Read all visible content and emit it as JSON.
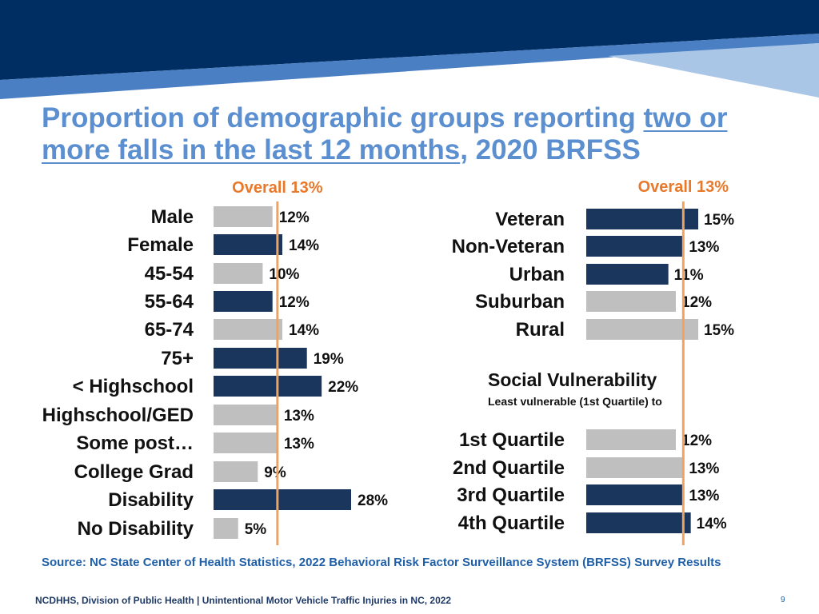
{
  "title": {
    "part1": "Proportion of demographic groups reporting ",
    "underlined1": "two or",
    "underlined2": "more falls in the last 12 months",
    "part2": ", 2020 BRFSS"
  },
  "colors": {
    "navy": "#1b365d",
    "gray": "#bfbfbf",
    "orange": "#f0a35e",
    "overall_label": "#e8792b",
    "banner_dark": "#002d62",
    "banner_mid": "#3d6fb8",
    "banner_light": "#a9c6e6"
  },
  "chart_data": [
    {
      "type": "bar",
      "orientation": "horizontal",
      "title": "Overall 13%",
      "reference_line": 13,
      "categories": [
        "Male",
        "Female",
        "45-54",
        "55-64",
        "65-74",
        "75+",
        "< Highschool",
        "Highschool/GED",
        "Some post…",
        "College Grad",
        "Disability",
        "No Disability"
      ],
      "values": [
        12,
        14,
        10,
        12,
        14,
        19,
        22,
        13,
        13,
        9,
        28,
        5
      ],
      "labels": [
        "12%",
        "14%",
        "10%",
        "12%",
        "14%",
        "19%",
        "22%",
        "13%",
        "13%",
        "9%",
        "28%",
        "5%"
      ],
      "highlight": [
        false,
        true,
        false,
        true,
        false,
        true,
        true,
        false,
        false,
        false,
        true,
        false
      ]
    },
    {
      "type": "bar",
      "orientation": "horizontal",
      "title": "Overall 13%",
      "reference_line": 13,
      "categories": [
        "Veteran",
        "Non-Veteran",
        "Urban",
        "Suburban",
        "Rural"
      ],
      "values": [
        15,
        13,
        11,
        12,
        15
      ],
      "labels": [
        "15%",
        "13%",
        "11%",
        "12%",
        "15%"
      ],
      "highlight": [
        true,
        true,
        true,
        false,
        false
      ]
    },
    {
      "type": "bar",
      "orientation": "horizontal",
      "title": "Social Vulnerability",
      "subtitle": "Least  vulnerable (1st Quartile) to",
      "reference_line": 13,
      "categories": [
        "1st Quartile",
        "2nd Quartile",
        "3rd Quartile",
        "4th Quartile"
      ],
      "values": [
        12,
        13,
        13,
        14
      ],
      "labels": [
        "12%",
        "13%",
        "13%",
        "14%"
      ],
      "highlight": [
        false,
        false,
        true,
        true
      ]
    }
  ],
  "source": "Source: NC State Center of Health Statistics, 2022 Behavioral Risk Factor Surveillance System (BRFSS) Survey Results",
  "footer": "NCDHHS, Division of Public Health | Unintentional Motor Vehicle Traffic Injuries in NC, 2022",
  "page_number": "9"
}
